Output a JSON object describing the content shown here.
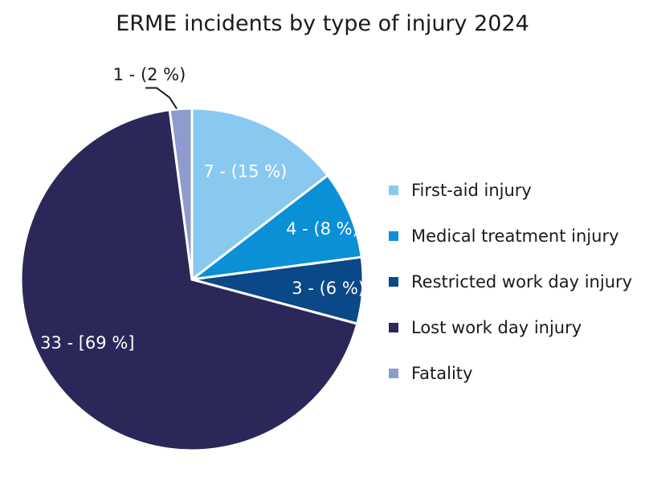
{
  "chart_data": {
    "type": "pie",
    "title": "ERME incidents by type of injury 2024",
    "slices": [
      {
        "name": "First-aid injury",
        "value": 7,
        "label": "7 - (15 %)",
        "color": "#89c9f0"
      },
      {
        "name": "Medical treatment injury",
        "value": 4,
        "label": "4 - (8 %)",
        "color": "#0a90d6"
      },
      {
        "name": "Restricted work day injury",
        "value": 3,
        "label": "3 - (6 %)",
        "color": "#0a4887"
      },
      {
        "name": "Lost work day injury",
        "value": 33,
        "label": "33 - [69 %]",
        "color": "#2b2859"
      },
      {
        "name": "Fatality",
        "value": 1,
        "label": "1 - (2 %)",
        "color": "#8f9bcc"
      }
    ],
    "legend_position": "right"
  }
}
